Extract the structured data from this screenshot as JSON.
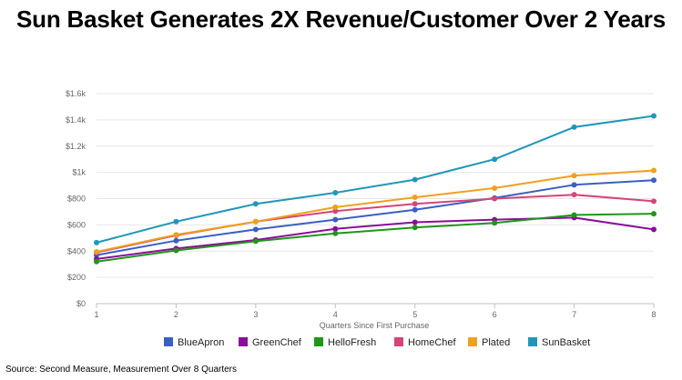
{
  "title": "Sun Basket Generates 2X Revenue/Customer Over 2 Years",
  "source": "Source: Second Measure, Measurement Over 8 Quarters",
  "chart_data": {
    "type": "line",
    "xlabel": "Quarters Since First Purchase",
    "ylabel": "",
    "x": [
      1,
      2,
      3,
      4,
      5,
      6,
      7,
      8
    ],
    "x_tick_labels": [
      "1",
      "2",
      "3",
      "4",
      "5",
      "6",
      "7",
      "8"
    ],
    "ylim": [
      0,
      1600
    ],
    "y_ticks": [
      0,
      200,
      400,
      600,
      800,
      1000,
      1200,
      1400,
      1600
    ],
    "y_tick_labels": [
      "$0",
      "$200",
      "$400",
      "$600",
      "$800",
      "$1k",
      "$1.2k",
      "$1.4k",
      "$1.6k"
    ],
    "grid": true,
    "legend_position": "bottom",
    "series": [
      {
        "name": "BlueApron",
        "color": "#3a5fc4",
        "values": [
          370,
          480,
          565,
          640,
          715,
          805,
          905,
          940
        ]
      },
      {
        "name": "GreenChef",
        "color": "#8a0e9a",
        "values": [
          340,
          420,
          485,
          570,
          620,
          640,
          655,
          565
        ]
      },
      {
        "name": "HelloFresh",
        "color": "#1e9618",
        "values": [
          320,
          405,
          475,
          535,
          580,
          615,
          675,
          685
        ]
      },
      {
        "name": "HomeChef",
        "color": "#d6447a",
        "values": [
          390,
          520,
          625,
          705,
          760,
          800,
          830,
          780
        ]
      },
      {
        "name": "Plated",
        "color": "#f0a020",
        "values": [
          395,
          525,
          625,
          735,
          810,
          880,
          975,
          1015
        ]
      },
      {
        "name": "SunBasket",
        "color": "#2196b8",
        "values": [
          465,
          625,
          760,
          845,
          945,
          1100,
          1345,
          1430
        ]
      }
    ]
  }
}
